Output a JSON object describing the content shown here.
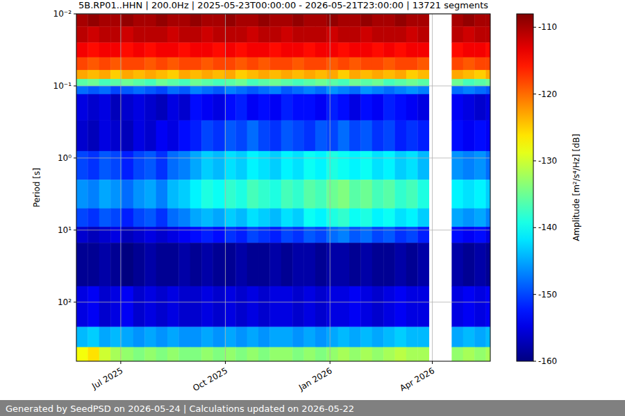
{
  "chart_data": {
    "type": "heatmap",
    "title": "5B.RP01..HHN | 200.0Hz | 2025-05-23T00:00:00 - 2026-05-21T23:00:00 | 13721 segments",
    "y_label": "Period [s]",
    "footer": "Generated by SeedPSD on 2026-05-24 | Calculations updated on 2026-05-22",
    "log": "y",
    "grid": true,
    "xlim": [
      "2025-05-23T00:00:00",
      "2026-05-21T23:00:00"
    ],
    "xticks": [
      {
        "value": "2025-07-01T00:00:00",
        "label": "Jul 2025"
      },
      {
        "value": "2025-10-01T00:00:00",
        "label": "Oct 2025"
      },
      {
        "value": "2026-01-01T00:00:00",
        "label": "Jan 2026"
      },
      {
        "value": "2026-04-01T00:00:00",
        "label": "Apr 2026"
      }
    ],
    "ylim": [
      0.01,
      660
    ],
    "yticks": [
      {
        "value": 0.01,
        "label": "10⁻²"
      },
      {
        "value": 0.1,
        "label": "10⁻¹"
      },
      {
        "value": 1,
        "label": "10⁰"
      },
      {
        "value": 10,
        "label": "10¹"
      },
      {
        "value": 100,
        "label": "10²"
      }
    ],
    "x": [
      "2025-05-23T00:00:00",
      "2025-06-02T00:00:00",
      "2025-06-12T00:00:00",
      "2025-06-22T00:00:00",
      "2025-07-02T00:00:00",
      "2025-07-12T00:00:00",
      "2025-07-22T00:00:00",
      "2025-08-01T00:00:00",
      "2025-08-11T00:00:00",
      "2025-08-21T00:00:00",
      "2025-08-31T00:00:00",
      "2025-09-10T00:00:00",
      "2025-09-20T00:00:00",
      "2025-09-30T00:00:00",
      "2025-10-10T00:00:00",
      "2025-10-20T00:00:00",
      "2025-10-30T00:00:00",
      "2025-11-09T00:00:00",
      "2025-11-19T00:00:00",
      "2025-11-29T00:00:00",
      "2025-12-09T00:00:00",
      "2025-12-19T00:00:00",
      "2025-12-29T00:00:00",
      "2026-01-08T00:00:00",
      "2026-01-18T00:00:00",
      "2026-01-28T00:00:00",
      "2026-02-07T00:00:00",
      "2026-02-17T00:00:00",
      "2026-02-27T00:00:00",
      "2026-03-09T00:00:00",
      "2026-03-19T00:00:00",
      "2026-03-29T00:00:00",
      "2026-04-08T00:00:00",
      "2026-04-18T00:00:00",
      "2026-04-28T00:00:00",
      "2026-05-08T00:00:00",
      "2026-05-18T00:00:00"
    ],
    "y": [
      0.01,
      0.015,
      0.025,
      0.04,
      0.06,
      0.08,
      0.1,
      0.13,
      0.3,
      0.8,
      2,
      5,
      9,
      15,
      60,
      220,
      420
    ],
    "cells": [
      [
        -110,
        -109,
        -110,
        -110,
        -109,
        -110,
        -110,
        -109,
        -110,
        -110,
        -109,
        -110,
        -110,
        -109,
        -110,
        -110,
        -109,
        -110,
        -110,
        -109,
        -110,
        -110,
        -109,
        -110,
        -110,
        -109,
        -110,
        -110,
        -109,
        -110,
        -110,
        null,
        null,
        -110,
        -109,
        -110,
        -110
      ],
      [
        -111,
        -112,
        -111,
        -111,
        -112,
        -111,
        -111,
        -111,
        -112,
        -111,
        -111,
        -112,
        -111,
        -111,
        -111,
        -112,
        -111,
        -111,
        -112,
        -111,
        -111,
        -111,
        -112,
        -111,
        -111,
        -112,
        -111,
        -111,
        -111,
        -112,
        -111,
        null,
        null,
        -111,
        -112,
        -111,
        -111
      ],
      [
        -114,
        -115,
        -114,
        -114,
        -115,
        -114,
        -115,
        -114,
        -114,
        -115,
        -114,
        -114,
        -115,
        -114,
        -115,
        -114,
        -114,
        -115,
        -114,
        -114,
        -115,
        -114,
        -114,
        -115,
        -114,
        -114,
        -115,
        -114,
        -115,
        -114,
        -114,
        null,
        null,
        -115,
        -114,
        -114,
        -115
      ],
      [
        -118,
        -119,
        -118,
        -119,
        -118,
        -118,
        -119,
        -118,
        -119,
        -118,
        -118,
        -119,
        -118,
        -118,
        -119,
        -118,
        -119,
        -118,
        -118,
        -119,
        -118,
        -118,
        -119,
        -118,
        -119,
        -118,
        -118,
        -119,
        -118,
        -118,
        -119,
        null,
        null,
        -118,
        -119,
        -118,
        -118
      ],
      [
        -123,
        -124,
        -123,
        -125,
        -123,
        -124,
        -123,
        -124,
        -125,
        -123,
        -124,
        -123,
        -124,
        -123,
        -125,
        -124,
        -123,
        -124,
        -123,
        -124,
        -123,
        -124,
        -123,
        -125,
        -123,
        -124,
        -123,
        -124,
        -123,
        -125,
        -124,
        null,
        null,
        -123,
        -124,
        -125,
        -123
      ],
      [
        -136,
        -135,
        -137,
        -136,
        -135,
        -136,
        -137,
        -135,
        -136,
        -137,
        -135,
        -136,
        -137,
        -136,
        -135,
        -137,
        -136,
        -135,
        -136,
        -137,
        -136,
        -135,
        -136,
        -137,
        -135,
        -136,
        -135,
        -137,
        -136,
        -135,
        -136,
        null,
        null,
        -135,
        -137,
        -136,
        -135
      ],
      [
        -148,
        -149,
        -148,
        -150,
        -149,
        -148,
        -149,
        -150,
        -148,
        -149,
        -147,
        -148,
        -149,
        -147,
        -148,
        -149,
        -148,
        -147,
        -149,
        -148,
        -147,
        -148,
        -146,
        -147,
        -148,
        -146,
        -147,
        -148,
        -147,
        -146,
        -147,
        null,
        null,
        -148,
        -147,
        -148,
        -149
      ],
      [
        -155,
        -156,
        -155,
        -157,
        -156,
        -155,
        -156,
        -157,
        -155,
        -156,
        -153,
        -154,
        -155,
        -153,
        -152,
        -154,
        -153,
        -154,
        -152,
        -153,
        -153,
        -154,
        -152,
        -153,
        -155,
        -153,
        -154,
        -152,
        -153,
        -154,
        -155,
        null,
        null,
        -154,
        -155,
        -156,
        -155
      ],
      [
        -156,
        -157,
        -155,
        -156,
        -157,
        -155,
        -156,
        -154,
        -155,
        -153,
        -152,
        -150,
        -151,
        -149,
        -150,
        -148,
        -150,
        -151,
        -149,
        -150,
        -151,
        -149,
        -150,
        -148,
        -150,
        -149,
        -151,
        -150,
        -152,
        -151,
        -152,
        null,
        null,
        -153,
        -154,
        -153,
        -154
      ],
      [
        -150,
        -151,
        -149,
        -150,
        -152,
        -150,
        -149,
        -151,
        -148,
        -147,
        -145,
        -143,
        -144,
        -142,
        -143,
        -141,
        -142,
        -143,
        -141,
        -142,
        -140,
        -141,
        -139,
        -140,
        -141,
        -140,
        -142,
        -141,
        -143,
        -142,
        -144,
        null,
        null,
        -146,
        -147,
        -146,
        -148
      ],
      [
        -146,
        -147,
        -145,
        -146,
        -148,
        -146,
        -145,
        -147,
        -144,
        -143,
        -141,
        -139,
        -140,
        -138,
        -139,
        -137,
        -138,
        -139,
        -137,
        -138,
        -136,
        -137,
        -135,
        -134,
        -136,
        -135,
        -137,
        -136,
        -138,
        -137,
        -139,
        null,
        null,
        -141,
        -142,
        -141,
        -143
      ],
      [
        -150,
        -151,
        -149,
        -150,
        -152,
        -150,
        -149,
        -151,
        -148,
        -147,
        -145,
        -144,
        -145,
        -143,
        -144,
        -142,
        -143,
        -144,
        -142,
        -143,
        -140,
        -141,
        -139,
        -138,
        -140,
        -139,
        -141,
        -140,
        -142,
        -141,
        -143,
        null,
        null,
        -145,
        -146,
        -145,
        -147
      ],
      [
        -156,
        -157,
        -156,
        -155,
        -157,
        -156,
        -155,
        -156,
        -155,
        -154,
        -153,
        -152,
        -153,
        -151,
        -152,
        -150,
        -151,
        -152,
        -150,
        -151,
        -149,
        -150,
        -148,
        -147,
        -149,
        -148,
        -150,
        -149,
        -151,
        -150,
        -152,
        null,
        null,
        -153,
        -154,
        -153,
        -155
      ],
      [
        -159,
        -159,
        -158,
        -159,
        -160,
        -159,
        -158,
        -159,
        -159,
        -158,
        -159,
        -158,
        -159,
        -159,
        -158,
        -159,
        -159,
        -158,
        -159,
        -158,
        -158,
        -159,
        -158,
        -158,
        -159,
        -158,
        -159,
        -159,
        -158,
        -159,
        -158,
        null,
        null,
        -158,
        -159,
        -158,
        -159
      ],
      [
        -155,
        -154,
        -156,
        -155,
        -154,
        -156,
        -155,
        -156,
        -155,
        -156,
        -156,
        -155,
        -156,
        -155,
        -156,
        -155,
        -156,
        -155,
        -155,
        -156,
        -155,
        -156,
        -155,
        -155,
        -154,
        -155,
        -156,
        -155,
        -154,
        -155,
        -155,
        null,
        null,
        -155,
        -154,
        -155,
        -154
      ],
      [
        -144,
        -143,
        -145,
        -144,
        -145,
        -146,
        -145,
        -146,
        -145,
        -146,
        -146,
        -145,
        -146,
        -145,
        -146,
        -145,
        -146,
        -145,
        -145,
        -146,
        -145,
        -146,
        -145,
        -144,
        -145,
        -144,
        -145,
        -144,
        -143,
        -144,
        -144,
        null,
        null,
        -145,
        -144,
        -145,
        -144
      ],
      [
        -128,
        -126,
        -130,
        -132,
        -133,
        -134,
        -133,
        -134,
        -133,
        -134,
        -134,
        -133,
        -134,
        -133,
        -134,
        -133,
        -134,
        -133,
        -133,
        -134,
        -133,
        -134,
        -133,
        -132,
        -133,
        -132,
        -133,
        -132,
        -131,
        -132,
        -132,
        null,
        null,
        -133,
        -132,
        -133,
        -132
      ]
    ],
    "colorbar": {
      "label": "Amplitude [m²/s⁴/Hz] [dB]",
      "range": [
        -160,
        -108
      ],
      "ticks": [
        -160,
        -150,
        -140,
        -130,
        -120,
        -110
      ]
    }
  }
}
